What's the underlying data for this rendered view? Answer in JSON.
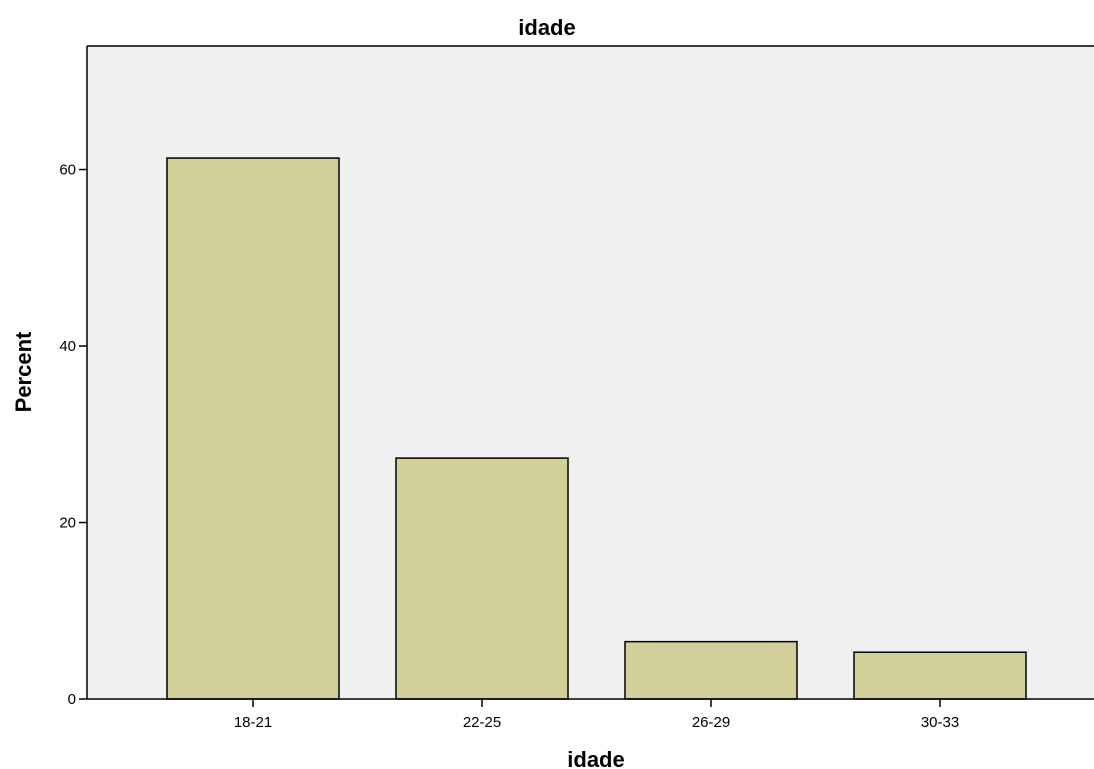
{
  "chart_data": {
    "type": "bar",
    "title": "idade",
    "xlabel": "idade",
    "ylabel": "Percent",
    "categories": [
      "18-21",
      "22-25",
      "26-29",
      "30-33"
    ],
    "values": [
      61.3,
      27.3,
      6.5,
      5.3
    ],
    "ylim": [
      0,
      74
    ],
    "yticks": [
      0,
      20,
      40,
      60
    ],
    "ytick_labels": [
      "0",
      "20",
      "40",
      "60"
    ],
    "grid": false,
    "legend": "none",
    "colors": {
      "bar_fill": "#d3cf98",
      "plot_background": "#f0f0f0",
      "page_background": "#ffffff"
    }
  }
}
